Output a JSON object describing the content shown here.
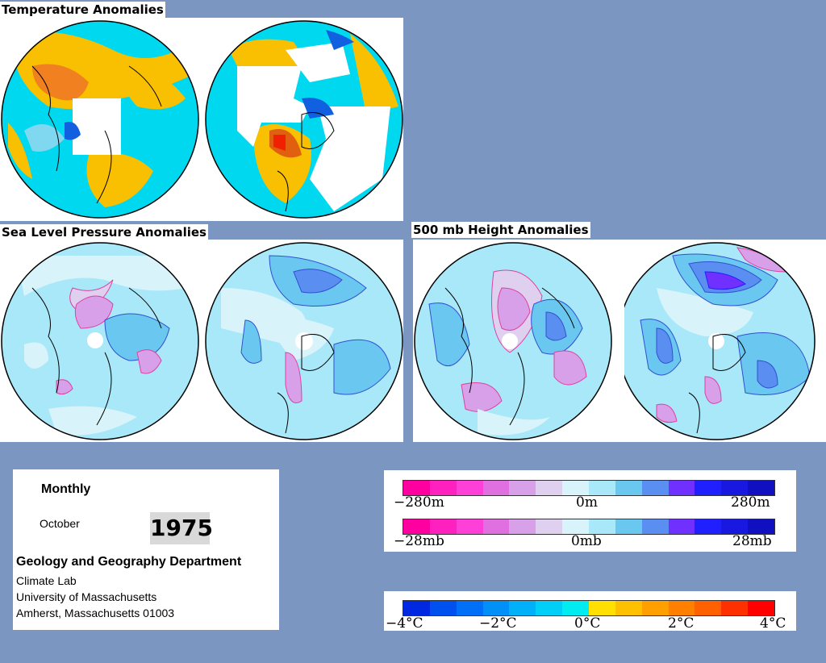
{
  "panels": {
    "temperature": {
      "title": "Temperature Anomalies"
    },
    "slp": {
      "title": "Sea Level Pressure Anomalies"
    },
    "height500": {
      "title": "500 mb Height Anomalies"
    }
  },
  "info": {
    "period": "Monthly",
    "month": "October",
    "year": "1975",
    "department": "Geology and Geography Department",
    "lab": "Climate Lab",
    "university": "University of Massachusetts",
    "address": "Amherst, Massachusetts 01003"
  },
  "legends": {
    "height": {
      "min": "−280m",
      "mid": "0m",
      "max": "280m",
      "colors": [
        "#ff00a0",
        "#ff20c0",
        "#ff40d8",
        "#e070e0",
        "#d8a0e8",
        "#e0d0f0",
        "#d8f4fa",
        "#a8e8f8",
        "#6ac8f0",
        "#5a8ef0",
        "#7030ff",
        "#2020ff",
        "#1818e0",
        "#1010c0"
      ]
    },
    "pressure": {
      "min": "−28mb",
      "mid": "0mb",
      "max": "28mb",
      "colors": [
        "#ff00a0",
        "#ff20c0",
        "#ff40d8",
        "#e070e0",
        "#d8a0e8",
        "#e0d0f0",
        "#d8f4fa",
        "#a8e8f8",
        "#6ac8f0",
        "#5a8ef0",
        "#7030ff",
        "#2020ff",
        "#1818e0",
        "#1010c0"
      ]
    },
    "temperature": {
      "labels": [
        "−4°C",
        "−2°C",
        "0°C",
        "2°C",
        "4°C"
      ],
      "colors": [
        "#0028e0",
        "#0050f0",
        "#0070f8",
        "#0090f8",
        "#00b0f8",
        "#00d0f8",
        "#00ecf0",
        "#ffe000",
        "#ffc000",
        "#ffa000",
        "#ff8000",
        "#ff6000",
        "#ff3000",
        "#ff0000"
      ]
    }
  }
}
